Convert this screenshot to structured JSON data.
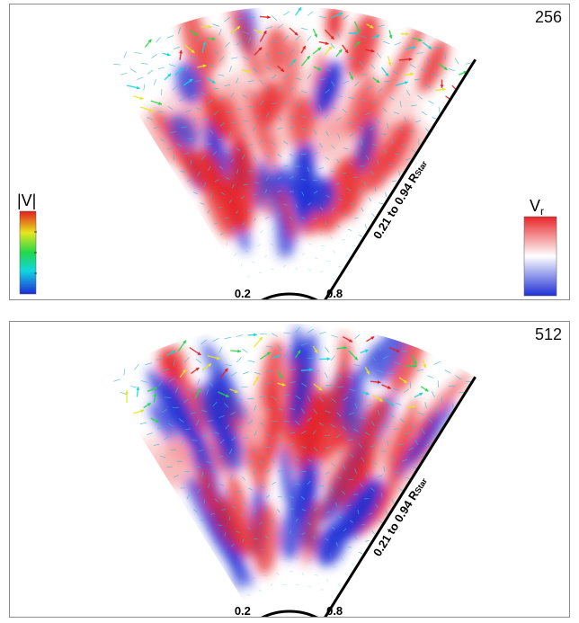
{
  "panels": [
    {
      "step": "256",
      "radial_range_label": "0.21 to 0.94 R",
      "radial_range_subscript": "Star",
      "inner_tick_label": "0.2",
      "outer_tick_label": "0.8",
      "show_colorbars": true,
      "speed_colorbar_label": "|V|",
      "vr_colorbar_label": "V",
      "vr_colorbar_subscript": "r"
    },
    {
      "step": "512",
      "radial_range_label": "0.21 to 0.94 R",
      "radial_range_subscript": "Star",
      "inner_tick_label": "0.2",
      "outer_tick_label": "0.8",
      "show_colorbars": false
    }
  ],
  "colors": {
    "vr_positive": "#e8262a",
    "vr_negative": "#1f2fd6",
    "vr_zero": "#ffffff",
    "speed_low": "#1f2bd6",
    "speed_mid_low": "#12d6e0",
    "speed_mid": "#22d84a",
    "speed_mid_high": "#e6e61e",
    "speed_high": "#e31d1d",
    "arrow_slow": "#3fb7d8",
    "frame": "#8a8a8a",
    "outline": "#000000"
  },
  "icons": {
    "arrow_glyph": "velocity-arrow"
  }
}
